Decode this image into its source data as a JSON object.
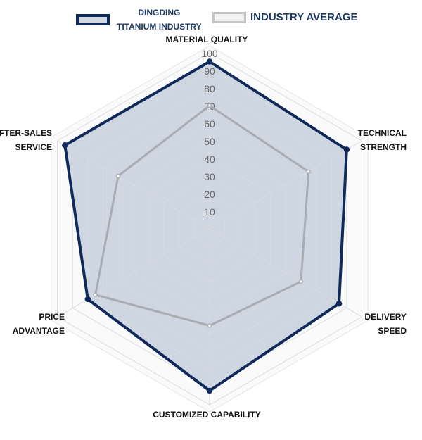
{
  "chart_data": {
    "type": "radar",
    "title": "",
    "axes": [
      "MATERIAL QUALITY",
      "TECHNICAL STRENGTH",
      "DELIVERY SPEED",
      "CUSTOMIZED CAPABILITY",
      "PRICE ADVANTAGE",
      "AFTER-SALES SERVICE"
    ],
    "axis_label_lines": [
      [
        "MATERIAL QUALITY"
      ],
      [
        "TECHNICAL",
        "STRENGTH"
      ],
      [
        "DELIVERY",
        "SPEED"
      ],
      [
        "CUSTOMIZED CAPABILITY"
      ],
      [
        "PRICE",
        "ADVANTAGE"
      ],
      [
        "AFTER-SALES",
        "SERVICE"
      ]
    ],
    "range": [
      0,
      100
    ],
    "ticks": [
      10,
      20,
      30,
      40,
      50,
      60,
      70,
      80,
      90,
      100
    ],
    "tick_labels": [
      "10",
      "20",
      "30",
      "40",
      "50",
      "60",
      "70",
      "80",
      "90",
      "100"
    ],
    "series": [
      {
        "name": "DINGDING TITANIUM INDUSTRY",
        "name_lines": [
          "DINGDING",
          "TITANIUM INDUSTRY"
        ],
        "values": [
          95,
          90,
          85,
          92,
          80,
          95
        ],
        "color": "#0f2a5a",
        "fill": "#c5cfdc"
      },
      {
        "name": "INDUSTRY AVERAGE",
        "values": [
          70,
          65,
          60,
          55,
          75,
          60
        ],
        "color": "#a9acb2"
      }
    ],
    "legend": "top"
  }
}
